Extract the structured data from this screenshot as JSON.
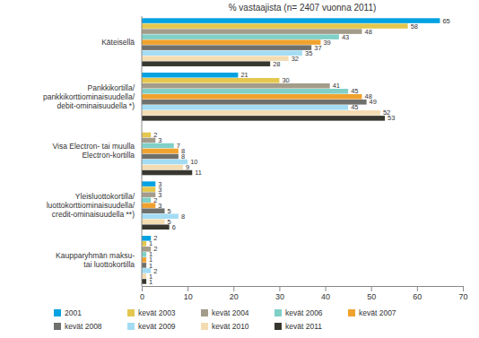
{
  "chart_data": {
    "type": "bar",
    "orientation": "horizontal",
    "title": "% vastaajista (n= 2407 vuonna 2011)",
    "categories": [
      "Käteisellä",
      "Pankkikortilla/\npankkikorttiominaisuudella/\ndebit-ominaisuudella *)",
      "Visa Electron- tai muulla\nElectron-kortilla",
      "Yleisluottokortilla/\nluottokorttiominaisuudella/\ncredit-ominaisuudella **)",
      "Kaupparyhmän maksu-\ntai luottokortilla"
    ],
    "series": [
      {
        "name": "2001",
        "color": "#00a2e1",
        "values": [
          65,
          21,
          null,
          3,
          2
        ]
      },
      {
        "name": "kevät 2003",
        "color": "#e3c74e",
        "values": [
          58,
          30,
          2,
          3,
          1
        ]
      },
      {
        "name": "kevät 2004",
        "color": "#a39c8b",
        "values": [
          48,
          41,
          3,
          3,
          2
        ]
      },
      {
        "name": "kevät 2006",
        "color": "#80d0c8",
        "values": [
          43,
          45,
          7,
          2,
          1
        ]
      },
      {
        "name": "kevät 2007",
        "color": "#f0a22e",
        "values": [
          39,
          48,
          8,
          3,
          1
        ]
      },
      {
        "name": "kevät 2008",
        "color": "#6f6f6c",
        "values": [
          37,
          49,
          8,
          5,
          1
        ]
      },
      {
        "name": "kevät 2009",
        "color": "#a3dcf3",
        "values": [
          35,
          45,
          10,
          8,
          2
        ]
      },
      {
        "name": "kevät 2010",
        "color": "#f3dcb2",
        "values": [
          32,
          52,
          9,
          5,
          1
        ]
      },
      {
        "name": "kevät 2011",
        "color": "#38372f",
        "values": [
          28,
          53,
          11,
          6,
          1
        ]
      }
    ],
    "xlim": [
      0,
      70
    ],
    "xticks": [
      0,
      10,
      20,
      30,
      40,
      50,
      60,
      70
    ],
    "data_labels": true,
    "grid": false,
    "legend": "bottom"
  }
}
